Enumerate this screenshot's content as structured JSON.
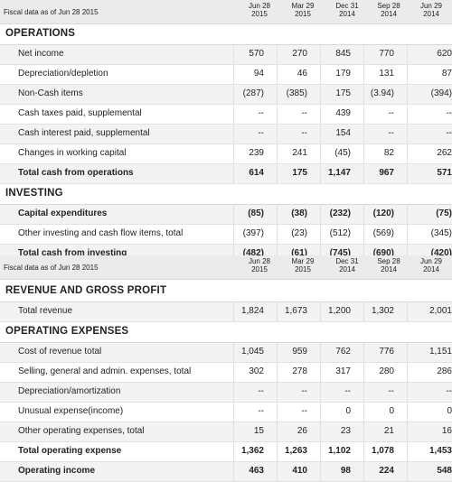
{
  "table1": {
    "header": {
      "title": "Fiscal data as of Jun 28 2015",
      "columns": [
        {
          "line1": "Jun 28",
          "line2": "2015"
        },
        {
          "line1": "Mar 29",
          "line2": "2015"
        },
        {
          "line1": "Dec 31",
          "line2": "2014"
        },
        {
          "line1": "Sep 28",
          "line2": "2014"
        },
        {
          "line1": "Jun 29",
          "line2": "2014"
        }
      ]
    },
    "sections": {
      "operations": {
        "title": "OPERATIONS",
        "rows": [
          {
            "label": "Net income",
            "values": [
              "570",
              "270",
              "845",
              "770",
              "620"
            ]
          },
          {
            "label": "Depreciation/depletion",
            "values": [
              "94",
              "46",
              "179",
              "131",
              "87"
            ]
          },
          {
            "label": "Non-Cash items",
            "values": [
              "(287)",
              "(385)",
              "175",
              "(3.94)",
              "(394)"
            ]
          },
          {
            "label": "Cash taxes paid, supplemental",
            "values": [
              "--",
              "--",
              "439",
              "--",
              "--"
            ]
          },
          {
            "label": "Cash interest paid, supplemental",
            "values": [
              "--",
              "--",
              "154",
              "--",
              "--"
            ]
          },
          {
            "label": "Changes in working capital",
            "values": [
              "239",
              "241",
              "(45)",
              "82",
              "262"
            ]
          },
          {
            "label": "Total cash from operations",
            "values": [
              "614",
              "175",
              "1,147",
              "967",
              "571"
            ]
          }
        ]
      },
      "investing": {
        "title": "INVESTING",
        "rows": [
          {
            "label": "Capital expenditures",
            "values": [
              "(85)",
              "(38)",
              "(232)",
              "(120)",
              "(75)"
            ]
          },
          {
            "label": "Other investing and cash flow items, total",
            "values": [
              "(397)",
              "(23)",
              "(512)",
              "(569)",
              "(345)"
            ]
          },
          {
            "label": "Total cash from investing",
            "values": [
              "(482)",
              "(61)",
              "(745)",
              "(690)",
              "(420)"
            ]
          }
        ]
      }
    }
  },
  "table2": {
    "header": {
      "title": "Fiscal data as of Jun 28 2015",
      "columns": [
        {
          "line1": "Jun 28",
          "line2": "2015"
        },
        {
          "line1": "Mar 29",
          "line2": "2015"
        },
        {
          "line1": "Dec 31",
          "line2": "2014"
        },
        {
          "line1": "Sep 28",
          "line2": "2014"
        },
        {
          "line1": "Jun 29",
          "line2": "2014"
        }
      ]
    },
    "sections": {
      "revenue": {
        "title": "REVENUE AND GROSS PROFIT",
        "rows": [
          {
            "label": "Total revenue",
            "values": [
              "1,824",
              "1,673",
              "1,200",
              "1,302",
              "2,001"
            ]
          }
        ]
      },
      "opex": {
        "title": "OPERATING EXPENSES",
        "rows": [
          {
            "label": "Cost of revenue total",
            "values": [
              "1,045",
              "959",
              "762",
              "776",
              "1,151"
            ]
          },
          {
            "label": "Selling, general and admin. expenses, total",
            "values": [
              "302",
              "278",
              "317",
              "280",
              "286"
            ]
          },
          {
            "label": "Depreciation/amortization",
            "values": [
              "--",
              "--",
              "--",
              "--",
              "--"
            ]
          },
          {
            "label": "Unusual expense(income)",
            "values": [
              "--",
              "--",
              "0",
              "0",
              "0"
            ]
          },
          {
            "label": "Other operating expenses, total",
            "values": [
              "15",
              "26",
              "23",
              "21",
              "16"
            ]
          },
          {
            "label": "Total operating expense",
            "values": [
              "1,362",
              "1,263",
              "1,102",
              "1,078",
              "1,453"
            ]
          },
          {
            "label": "Operating income",
            "values": [
              "463",
              "410",
              "98",
              "224",
              "548"
            ]
          }
        ]
      }
    }
  }
}
